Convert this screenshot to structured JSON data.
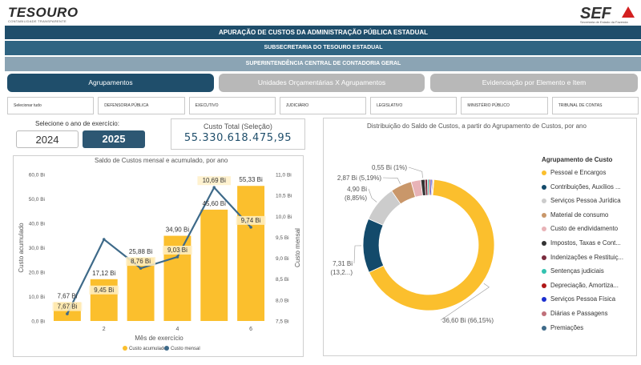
{
  "header": {
    "left_logo": "TESOURO",
    "left_logo_sub": "CONTABILIDADE TRANSPARENTE",
    "right_logo": "SEF",
    "right_logo_sub": "Secretaria de Estado da Fazenda",
    "title": "APURAÇÃO DE CUSTOS DA ADMINISTRAÇÃO PÚBLICA ESTADUAL",
    "subtitle": "SUBSECRETARIA DO TESOURO ESTADUAL",
    "subtitle2": "SUPERINTENDÊNCIA CENTRAL DE CONTADORIA GERAL"
  },
  "tabs": [
    {
      "label": "Agrupamentos",
      "active": true
    },
    {
      "label": "Unidades Orçamentárias X Agrupamentos",
      "active": false
    },
    {
      "label": "Evidenciação por Elemento e Item",
      "active": false
    }
  ],
  "filters": [
    "Selecionar tudo",
    "DEFENSORIA PÚBLICA",
    "EXECUTIVO",
    "JUDICIÁRIO",
    "LEGISLATIVO",
    "MINISTÉRIO PÚBLICO",
    "TRIBUNAL DE CONTAS"
  ],
  "year_selector": {
    "label": "Selecione o ano de exercício:",
    "options": [
      "2024",
      "2025"
    ],
    "selected": "2025"
  },
  "kpi": {
    "label": "Custo Total (Seleção)",
    "value": "55.330.618.475,95"
  },
  "colors": {
    "primary": "#1f4e6b",
    "bar": "#fbbf2d",
    "line": "#3e6a89"
  },
  "chart_data": [
    {
      "type": "bar",
      "title": "Saldo de Custos mensal e acumulado, por ano",
      "xlabel": "Mês de exercício",
      "ylabel": "Custo acumulado",
      "y2label": "Custo mensal",
      "x": [
        1,
        2,
        3,
        4,
        5,
        6
      ],
      "x_ticks": [
        "2",
        "4",
        "6"
      ],
      "y_ticks": [
        "0,0 Bi",
        "10,0 Bi",
        "20,0 Bi",
        "30,0 Bi",
        "40,0 Bi",
        "50,0 Bi",
        "60,0 Bi"
      ],
      "y2_ticks": [
        "7,5 Bi",
        "8,0 Bi",
        "8,5 Bi",
        "9,0 Bi",
        "9,5 Bi",
        "10,0 Bi",
        "10,5 Bi",
        "11,0 Bi"
      ],
      "ylim": [
        0,
        60
      ],
      "y2lim": [
        7.5,
        11.0
      ],
      "series": [
        {
          "name": "Custo acumulado",
          "values": [
            7.67,
            17.12,
            25.88,
            34.9,
            45.6,
            55.33
          ],
          "labels": [
            "7,67 Bi",
            "17,12 Bi",
            "25,88 Bi",
            "34,90 Bi",
            "45,60 Bi",
            "55,33 Bi"
          ]
        },
        {
          "name": "Custo mensal",
          "values": [
            7.67,
            9.45,
            8.76,
            9.03,
            10.69,
            9.74
          ],
          "labels": [
            "7,67 Bi",
            "9,45 Bi",
            "8,76 Bi",
            "9,03 Bi",
            "10,69 Bi",
            "9,74 Bi"
          ]
        }
      ],
      "legend": [
        "Custo acumulado",
        "Custo mensal"
      ]
    },
    {
      "type": "pie",
      "title": "Distribuição do Saldo de Custos, a partir do Agrupamento de Custos, por ano",
      "legend_title": "Agrupamento de Custo",
      "slices": [
        {
          "name": "Pessoal e Encargos",
          "value": 36.6,
          "percent": 66.15,
          "label": "36,60 Bi (66,15%)",
          "color": "#fbbf2d"
        },
        {
          "name": "Contribuições, Auxílios ...",
          "value": 7.31,
          "percent": 13.2,
          "label": "7,31 Bi",
          "label2": "(13,2...)",
          "color": "#134a6b"
        },
        {
          "name": "Serviços Pessoa Jurídica",
          "value": 4.9,
          "percent": 8.85,
          "label": "4,90 Bi",
          "label2": "(8,85%)",
          "color": "#cccccc"
        },
        {
          "name": "Material de consumo",
          "value": 2.87,
          "percent": 5.19,
          "label": "2,87 Bi (5,19%)",
          "color": "#c9976a"
        },
        {
          "name": "Custo de endividamento",
          "value": 1.3,
          "percent": 2.35,
          "color": "#e8b3b7"
        },
        {
          "name": "Impostos, Taxas e Cont...",
          "value": 0.55,
          "percent": 1.0,
          "label": "0,55 Bi (1%)",
          "color": "#333333"
        },
        {
          "name": "Indenizações e Restituiç...",
          "value": 0.35,
          "percent": 0.63,
          "color": "#7a2c3e"
        },
        {
          "name": "Sentenças judiciais",
          "value": 0.2,
          "percent": 0.36,
          "color": "#33c2b0"
        },
        {
          "name": "Depreciação, Amortiza...",
          "value": 0.2,
          "percent": 0.36,
          "color": "#b01818"
        },
        {
          "name": "Serviços Pessoa Física",
          "value": 0.2,
          "percent": 0.36,
          "color": "#1b2fd0"
        },
        {
          "name": "Diárias e Passagens",
          "value": 0.15,
          "percent": 0.27,
          "color": "#c0707a"
        },
        {
          "name": "Premiações",
          "value": 0.1,
          "percent": 0.18,
          "color": "#3e6a89"
        }
      ]
    }
  ]
}
